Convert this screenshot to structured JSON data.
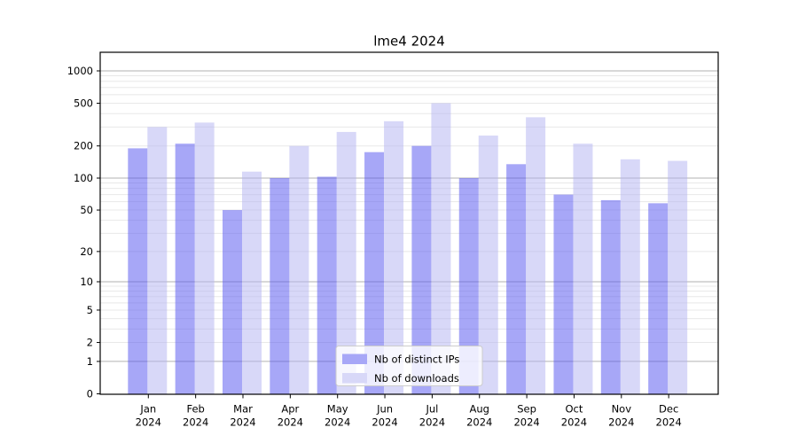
{
  "chart_data": {
    "type": "bar",
    "title": "lme4 2024",
    "x_months": [
      "Jan",
      "Feb",
      "Mar",
      "Apr",
      "May",
      "Jun",
      "Jul",
      "Aug",
      "Sep",
      "Oct",
      "Nov",
      "Dec"
    ],
    "x_year": "2024",
    "y_ticks": [
      0,
      1,
      2,
      5,
      10,
      20,
      50,
      100,
      200,
      500,
      1000
    ],
    "y_tick_labels": [
      "0",
      "1",
      "2",
      "5",
      "10",
      "20",
      "50",
      "100",
      "200",
      "500",
      "1000"
    ],
    "y_scale": "log1p",
    "ylim": [
      0,
      1490
    ],
    "grid": "horizontal; major lines at 1,10,100,1000; minor lines at 2-9 per decade",
    "legend_position": "lower center inside plot",
    "series": [
      {
        "name": "Nb of distinct IPs",
        "fill": "#5050f0",
        "fill_opacity": 0.5,
        "legend_swatch": "#a7a7f7",
        "values": [
          190,
          210,
          50,
          100,
          103,
          175,
          200,
          100,
          135,
          70,
          62,
          58
        ]
      },
      {
        "name": "Nb of downloads",
        "fill": "#b1b1f2",
        "fill_opacity": 0.5,
        "legend_swatch": "#d8d8f8",
        "values": [
          300,
          330,
          115,
          200,
          270,
          340,
          500,
          250,
          370,
          210,
          150,
          145
        ]
      }
    ],
    "colors": {
      "background": "#ffffff",
      "axis": "#000000",
      "grid_major": "#b2b2b2",
      "grid_minor": "#e8e8e8",
      "text": "#000000",
      "legend_border": "#cccccc",
      "legend_background": "#ffffff"
    }
  }
}
